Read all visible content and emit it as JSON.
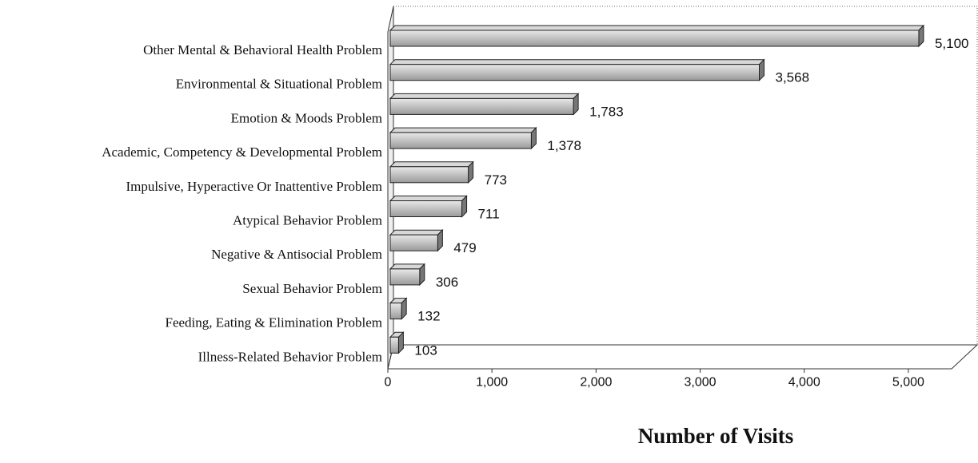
{
  "chart_data": {
    "type": "bar",
    "orientation": "horizontal",
    "x_label": "Number of Visits",
    "categories": [
      "Other Mental & Behavioral Health Problem",
      "Environmental & Situational Problem",
      "Emotion & Moods Problem",
      "Academic, Competency & Developmental Problem",
      "Impulsive, Hyperactive Or Inattentive Problem",
      "Atypical Behavior Problem",
      "Negative & Antisocial Problem",
      "Sexual Behavior Problem",
      "Feeding, Eating & Elimination Problem",
      "Illness-Related Behavior Problem"
    ],
    "values": [
      5100,
      3568,
      1783,
      1378,
      773,
      711,
      479,
      306,
      132,
      103
    ],
    "value_labels": [
      "5,100",
      "3,568",
      "1,783",
      "1,378",
      "773",
      "711",
      "479",
      "306",
      "132",
      "103"
    ],
    "color": "#bdbdbd",
    "xlim": [
      0,
      5400
    ],
    "xticks": [
      0,
      {
        "value": 1000,
        "label": "1,000"
      },
      {
        "value": 2000,
        "label": "2,000"
      },
      {
        "value": 3000,
        "label": "3,000"
      },
      {
        "value": 4000,
        "label": "4,000"
      },
      {
        "value": 5000,
        "label": "5,000"
      }
    ]
  }
}
